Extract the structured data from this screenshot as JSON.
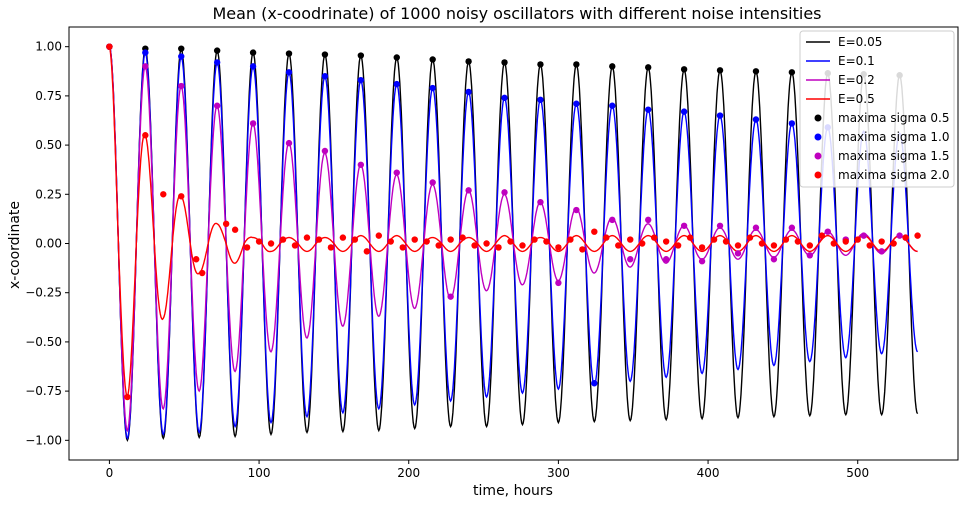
{
  "chart_data": {
    "type": "line",
    "title": "Mean (x-coodrinate) of 1000 noisy oscillators with different noise intensities",
    "xlabel": "time, hours",
    "ylabel": "x-coordinate",
    "xlim": [
      -27,
      567
    ],
    "ylim": [
      -1.1,
      1.1
    ],
    "x_ticks": [
      0,
      100,
      200,
      300,
      400,
      500
    ],
    "y_ticks": [
      -1.0,
      -0.75,
      -0.5,
      -0.25,
      0.0,
      0.25,
      0.5,
      0.75,
      1.0
    ],
    "x_tick_labels": [
      "0",
      "100",
      "200",
      "300",
      "400",
      "500"
    ],
    "y_tick_labels": [
      "−1.00",
      "−0.75",
      "−0.50",
      "−0.25",
      "0.00",
      "0.25",
      "0.50",
      "0.75",
      "1.00"
    ],
    "grid": false,
    "legend_position": "top-right",
    "period_hours": 24,
    "x_range": [
      0,
      540
    ],
    "series": [
      {
        "name": "E=0.05",
        "kind": "line",
        "color": "#000000",
        "peak_x": [
          0,
          24,
          48,
          72,
          96,
          120,
          144,
          168,
          192,
          216,
          240,
          264,
          288,
          312,
          336,
          360,
          384,
          408,
          432,
          456,
          480,
          504,
          528
        ],
        "peak_y": [
          1.0,
          0.99,
          0.99,
          0.98,
          0.97,
          0.965,
          0.96,
          0.955,
          0.945,
          0.935,
          0.925,
          0.92,
          0.91,
          0.91,
          0.9,
          0.895,
          0.885,
          0.88,
          0.875,
          0.87,
          0.865,
          0.86,
          0.855
        ],
        "trough_y": [
          -1.0,
          -0.99,
          -0.985,
          -0.98,
          -0.97,
          -0.96,
          -0.955,
          -0.95,
          -0.94,
          -0.93,
          -0.93,
          -0.92,
          -0.91,
          -0.905,
          -0.9,
          -0.895,
          -0.89,
          -0.885,
          -0.88,
          -0.875,
          -0.87,
          -0.87,
          -0.865
        ],
        "end_value": -0.85
      },
      {
        "name": "E=0.1",
        "kind": "line",
        "color": "#0000ff",
        "peak_x": [
          0,
          24,
          48,
          72,
          96,
          120,
          144,
          168,
          192,
          216,
          240,
          264,
          288,
          312,
          336,
          360,
          384,
          408,
          432,
          456,
          480,
          504,
          528
        ],
        "peak_y": [
          1.0,
          0.97,
          0.95,
          0.92,
          0.9,
          0.87,
          0.85,
          0.83,
          0.81,
          0.79,
          0.77,
          0.74,
          0.73,
          0.71,
          0.7,
          0.68,
          0.67,
          0.65,
          0.63,
          0.61,
          0.59,
          0.57,
          0.56
        ],
        "trough_y": [
          -0.99,
          -0.97,
          -0.96,
          -0.93,
          -0.91,
          -0.88,
          -0.86,
          -0.84,
          -0.82,
          -0.8,
          -0.78,
          -0.76,
          -0.74,
          -0.72,
          -0.7,
          -0.68,
          -0.66,
          -0.64,
          -0.62,
          -0.6,
          -0.58,
          -0.56,
          -0.55
        ],
        "end_value": -0.53
      },
      {
        "name": "E=0.2",
        "kind": "line",
        "color": "#bf00bf",
        "peak_x": [
          0,
          24,
          48,
          72,
          96,
          120,
          144,
          168,
          192,
          216,
          240,
          264,
          288,
          312,
          336,
          360,
          384,
          408,
          432,
          456,
          480,
          504,
          528
        ],
        "peak_y": [
          1.0,
          0.9,
          0.8,
          0.7,
          0.61,
          0.51,
          0.46,
          0.4,
          0.35,
          0.3,
          0.27,
          0.25,
          0.21,
          0.18,
          0.13,
          0.1,
          0.09,
          0.08,
          0.07,
          0.07,
          0.06,
          0.05,
          0.04
        ],
        "trough_y": [
          -0.95,
          -0.84,
          -0.75,
          -0.65,
          -0.55,
          -0.48,
          -0.42,
          -0.37,
          -0.33,
          -0.28,
          -0.24,
          -0.21,
          -0.19,
          -0.15,
          -0.12,
          -0.1,
          -0.08,
          -0.08,
          -0.07,
          -0.06,
          -0.06,
          -0.05,
          -0.04
        ],
        "end_value": -0.03
      },
      {
        "name": "E=0.5",
        "kind": "line",
        "color": "#ff0000",
        "peak_x": [
          0,
          24,
          48,
          72,
          96,
          120,
          144,
          168,
          192,
          216,
          240,
          264,
          288,
          312,
          336,
          360,
          384,
          408,
          432,
          456,
          480,
          504,
          528
        ],
        "peak_y": [
          1.0,
          0.55,
          0.24,
          0.1,
          0.03,
          0.03,
          0.03,
          0.04,
          0.04,
          0.03,
          0.03,
          0.04,
          0.03,
          0.04,
          0.04,
          0.04,
          0.04,
          0.04,
          0.04,
          0.04,
          0.04,
          0.04,
          0.04
        ],
        "trough_y": [
          -0.78,
          -0.38,
          -0.15,
          -0.1,
          -0.04,
          -0.04,
          -0.04,
          -0.04,
          -0.04,
          -0.04,
          -0.04,
          -0.04,
          -0.04,
          -0.04,
          -0.04,
          -0.04,
          -0.04,
          -0.04,
          -0.04,
          -0.04,
          -0.04,
          -0.04,
          -0.04
        ],
        "end_value": 0.04
      },
      {
        "name": "maxima sigma 0.5",
        "kind": "scatter",
        "color": "#000000",
        "x": [
          0,
          24,
          48,
          72,
          96,
          120,
          144,
          168,
          192,
          216,
          240,
          264,
          288,
          312,
          336,
          360,
          384,
          408,
          432,
          456,
          480,
          504,
          528
        ],
        "y": [
          1.0,
          0.99,
          0.99,
          0.98,
          0.97,
          0.965,
          0.96,
          0.955,
          0.945,
          0.935,
          0.925,
          0.92,
          0.91,
          0.91,
          0.9,
          0.895,
          0.885,
          0.88,
          0.875,
          0.87,
          0.865,
          0.86,
          0.855
        ]
      },
      {
        "name": "maxima sigma 1.0",
        "kind": "scatter",
        "color": "#0000ff",
        "x": [
          0,
          24,
          48,
          72,
          96,
          120,
          144,
          168,
          192,
          216,
          240,
          264,
          288,
          312,
          324,
          336,
          360,
          384,
          408,
          432,
          456,
          480
        ],
        "y": [
          1.0,
          0.97,
          0.95,
          0.92,
          0.9,
          0.87,
          0.85,
          0.83,
          0.81,
          0.79,
          0.77,
          0.74,
          0.73,
          0.71,
          -0.71,
          0.7,
          0.68,
          0.67,
          0.65,
          0.63,
          0.61,
          0.59
        ]
      },
      {
        "name": "maxima sigma 1.5",
        "kind": "scatter",
        "color": "#bf00bf",
        "x": [
          0,
          24,
          48,
          72,
          96,
          120,
          144,
          168,
          192,
          216,
          228,
          240,
          264,
          288,
          300,
          312,
          336,
          348,
          360,
          372,
          384,
          396,
          408,
          420,
          432,
          444,
          456,
          468,
          480,
          492,
          504,
          516,
          528,
          532
        ],
        "y": [
          1.0,
          0.9,
          0.8,
          0.7,
          0.61,
          0.51,
          0.47,
          0.4,
          0.36,
          0.31,
          -0.27,
          0.27,
          0.26,
          0.21,
          -0.2,
          0.17,
          0.12,
          -0.08,
          0.12,
          -0.08,
          0.09,
          -0.09,
          0.09,
          -0.05,
          0.08,
          -0.08,
          0.08,
          -0.06,
          0.06,
          0.02,
          0.04,
          -0.04,
          0.04,
          0.03
        ]
      },
      {
        "name": "maxima sigma 2.0",
        "kind": "scatter",
        "color": "#ff0000",
        "x": [
          0,
          12,
          24,
          36,
          48,
          58,
          62,
          78,
          84,
          92,
          100,
          108,
          116,
          124,
          132,
          140,
          148,
          156,
          164,
          172,
          180,
          188,
          196,
          204,
          212,
          220,
          228,
          236,
          244,
          252,
          260,
          268,
          276,
          284,
          292,
          300,
          308,
          316,
          324,
          332,
          340,
          348,
          356,
          364,
          372,
          380,
          388,
          396,
          404,
          412,
          420,
          428,
          436,
          444,
          452,
          460,
          468,
          476,
          484,
          492,
          500,
          508,
          516,
          524,
          532,
          540
        ],
        "y": [
          1.0,
          -0.78,
          0.55,
          0.25,
          0.24,
          -0.08,
          -0.15,
          0.1,
          0.07,
          -0.02,
          0.01,
          0.0,
          0.02,
          -0.01,
          0.03,
          0.02,
          -0.02,
          0.03,
          0.02,
          -0.04,
          0.04,
          0.01,
          -0.02,
          0.02,
          0.01,
          -0.01,
          0.02,
          0.03,
          -0.01,
          0.0,
          -0.02,
          0.01,
          -0.01,
          0.02,
          0.01,
          -0.02,
          0.02,
          -0.03,
          0.06,
          0.03,
          -0.01,
          0.02,
          0.0,
          0.03,
          0.01,
          -0.01,
          0.03,
          -0.02,
          0.02,
          0.01,
          -0.01,
          0.03,
          0.0,
          -0.01,
          0.02,
          0.01,
          -0.01,
          0.04,
          0.0,
          0.01,
          0.02,
          -0.01,
          0.01,
          0.0,
          0.03,
          0.04
        ]
      }
    ]
  }
}
